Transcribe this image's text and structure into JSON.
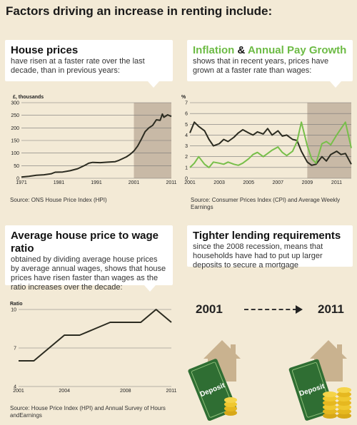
{
  "page_title": "Factors driving an increase in renting include:",
  "panels": {
    "house_prices": {
      "heading": "House prices",
      "text": "have risen at a faster rate over the last decade, than in previous years:",
      "source": "Source: ONS House Price Index (HPI)"
    },
    "inflation": {
      "heading_a": "Inflation",
      "heading_amp": "&",
      "heading_b": "Annual Pay Growth",
      "text": "shows that in recent years, prices have grown at a faster rate than wages:",
      "source": "Source:  Consumer Prices Index (CPI) and Average Weekly Earnings"
    },
    "ratio": {
      "heading": "Average house price to wage ratio",
      "text": "obtained by dividing average house prices by average annual wages, shows that house prices have risen faster than wages as the ratio increases over the decade:",
      "source": "Source: House Price Index (HPI) and Annual Survey of Hours andEarnings"
    },
    "lending": {
      "heading": "Tighter lending requirements",
      "text": "since the 2008 recession, means that households have had to put up larger deposits to secure a mortgage",
      "year_start": "2001",
      "year_end": "2011",
      "deposit_label": "Deposit"
    }
  },
  "colors": {
    "background": "#f3ead6",
    "line_dark": "#2b2b20",
    "line_green": "#77bf4a",
    "shade": "#c8b9a6",
    "house_icon": "#c9b28f",
    "banknote": "#2f6e33",
    "coin": "#e6b820"
  },
  "chart_data": [
    {
      "type": "line",
      "title": "House prices",
      "ylabel": "£, thousands",
      "ylim": [
        0,
        300
      ],
      "yticks": [
        0,
        50,
        100,
        150,
        200,
        250,
        300
      ],
      "xlim": [
        1971,
        2011
      ],
      "xticks": [
        1971,
        1981,
        1991,
        2001,
        2011
      ],
      "shaded_range": [
        2001,
        2011
      ],
      "grid": true,
      "series": [
        {
          "color": "#2b2b20",
          "x": [
            1971,
            1973,
            1975,
            1977,
            1979,
            1980,
            1982,
            1984,
            1986,
            1988,
            1989,
            1990,
            1992,
            1994,
            1996,
            1997,
            1999,
            2000,
            2001,
            2002,
            2003,
            2004,
            2005,
            2006,
            2007,
            2008,
            2008.6,
            2009,
            2010,
            2011
          ],
          "y": [
            5,
            8,
            12,
            14,
            18,
            24,
            25,
            30,
            38,
            52,
            60,
            63,
            62,
            64,
            66,
            71,
            85,
            95,
            108,
            128,
            155,
            185,
            200,
            210,
            232,
            230,
            255,
            242,
            252,
            245
          ]
        }
      ],
      "source": "Source: ONS House Price Index (HPI)"
    },
    {
      "type": "line",
      "title": "Inflation & Annual Pay Growth",
      "ylabel": "%",
      "ylim": [
        0,
        7
      ],
      "yticks": [
        0,
        1,
        2,
        3,
        4,
        5,
        6,
        7
      ],
      "xlim": [
        2001,
        2012
      ],
      "xticks": [
        2001,
        2003,
        2005,
        2007,
        2009,
        2011
      ],
      "shaded_range": [
        2009,
        2012
      ],
      "grid": true,
      "series": [
        {
          "name": "Annual Pay Growth",
          "color": "#2b2b20",
          "x": [
            2001,
            2001.3,
            2001.6,
            2002,
            2002.3,
            2002.6,
            2003,
            2003.3,
            2003.6,
            2004,
            2004.3,
            2004.6,
            2005,
            2005.3,
            2005.6,
            2006,
            2006.3,
            2006.6,
            2007,
            2007.3,
            2007.6,
            2008,
            2008.3,
            2008.6,
            2009,
            2009.3,
            2009.6,
            2010,
            2010.3,
            2010.6,
            2011,
            2011.3,
            2011.6,
            2012
          ],
          "y": [
            4.2,
            5.2,
            4.8,
            4.4,
            3.6,
            3.0,
            3.2,
            3.6,
            3.4,
            3.8,
            4.2,
            4.5,
            4.2,
            4.0,
            4.3,
            4.1,
            4.6,
            4.0,
            4.4,
            3.9,
            4.0,
            3.6,
            3.5,
            2.5,
            1.5,
            1.2,
            1.3,
            2.0,
            1.6,
            2.2,
            2.5,
            2.2,
            2.3,
            1.3
          ]
        },
        {
          "name": "Inflation",
          "color": "#77bf4a",
          "x": [
            2001,
            2001.3,
            2001.6,
            2002,
            2002.3,
            2002.6,
            2003,
            2003.3,
            2003.6,
            2004,
            2004.3,
            2004.6,
            2005,
            2005.3,
            2005.6,
            2006,
            2006.3,
            2006.6,
            2007,
            2007.3,
            2007.6,
            2008,
            2008.3,
            2008.6,
            2009,
            2009.3,
            2009.6,
            2010,
            2010.3,
            2010.6,
            2011,
            2011.3,
            2011.6,
            2012
          ],
          "y": [
            1.0,
            1.4,
            2.0,
            1.3,
            1.0,
            1.5,
            1.4,
            1.3,
            1.5,
            1.3,
            1.2,
            1.4,
            1.8,
            2.2,
            2.4,
            2.0,
            2.3,
            2.6,
            2.9,
            2.4,
            2.1,
            2.5,
            3.4,
            5.2,
            3.0,
            1.8,
            1.4,
            3.2,
            3.4,
            3.1,
            4.0,
            4.6,
            5.2,
            2.8
          ]
        }
      ],
      "source": "Source:  Consumer Prices Index (CPI) and Average Weekly Earnings"
    },
    {
      "type": "line",
      "title": "Average house price to wage ratio",
      "ylabel": "Ratio",
      "ylim": [
        4,
        10
      ],
      "yticks": [
        4,
        7,
        10
      ],
      "xlim": [
        2001,
        2011
      ],
      "xticks": [
        2001,
        2004,
        2008,
        2011
      ],
      "grid": true,
      "series": [
        {
          "color": "#2b2b20",
          "x": [
            2001,
            2002,
            2003,
            2004,
            2005,
            2006,
            2007,
            2008,
            2009,
            2010,
            2011
          ],
          "y": [
            6,
            6,
            7,
            8,
            8,
            8.5,
            9,
            9,
            9,
            10,
            9
          ]
        }
      ],
      "source": "Source: House Price Index (HPI) and Annual Survey of Hours andEarnings"
    }
  ]
}
